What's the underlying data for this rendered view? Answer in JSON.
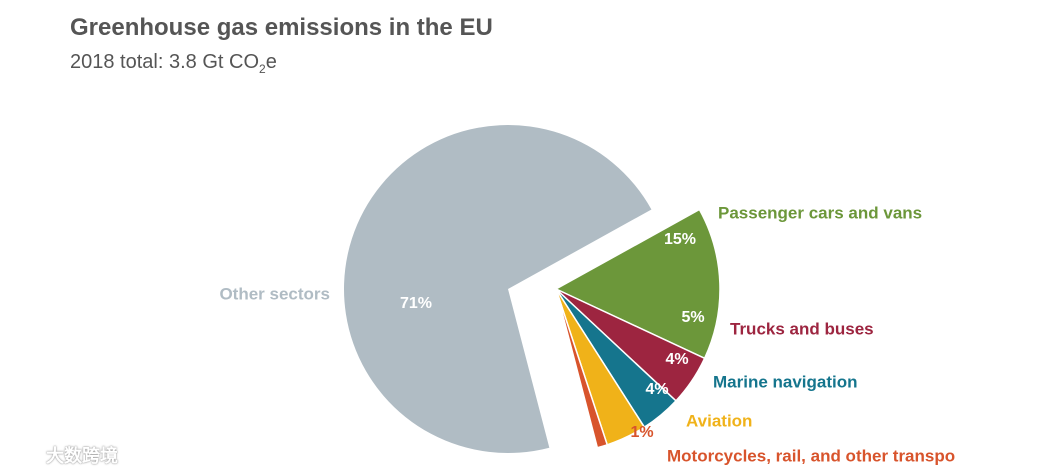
{
  "chart_data": {
    "type": "pie",
    "title": "Greenhouse gas emissions in the EU",
    "subtitle_prefix": "2018 total: 3.8 Gt CO",
    "subtitle_sub": "2",
    "subtitle_suffix": "e",
    "slices": [
      {
        "name": "Passenger cars and vans",
        "value": 15,
        "label": "15%",
        "color": "#6c973a",
        "exploded": true
      },
      {
        "name": "Trucks and buses",
        "value": 5,
        "label": "5%",
        "color": "#9d2540",
        "exploded": true
      },
      {
        "name": "Marine navigation",
        "value": 4,
        "label": "4%",
        "color": "#15758d",
        "exploded": true
      },
      {
        "name": "Aviation",
        "value": 4,
        "label": "4%",
        "color": "#f0b219",
        "exploded": true
      },
      {
        "name": "Motorcycles, rail, and other transpo",
        "value": 1,
        "label": "1%",
        "color": "#d8542c",
        "exploded": true
      },
      {
        "name": "Other sectors",
        "value": 71,
        "label": "71%",
        "color": "#b0bcc4",
        "exploded": false
      }
    ]
  },
  "watermark": {
    "text": "大数跨境",
    "logo": "brand-logo-icon"
  }
}
